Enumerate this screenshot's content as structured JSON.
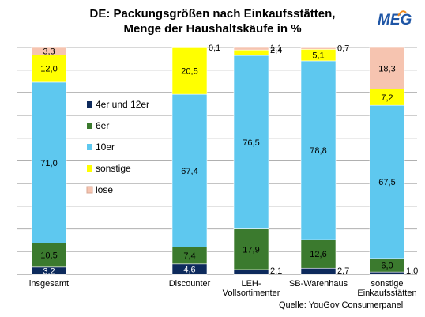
{
  "title_line1": "DE: Packungsgrößen nach Einkaufsstätten,",
  "title_line2": "Menge der Haushaltskäufe in %",
  "logo_text": "MEG",
  "source": "Quelle: YouGov Consumerpanel",
  "chart_data": {
    "type": "bar",
    "stacked": true,
    "categories": [
      "insgesamt",
      "Discounter",
      "LEH-Vollsortimenter",
      "SB-Warenhaus",
      "sonstige Einkaufsstätten"
    ],
    "category_lines": [
      [
        "insgesamt"
      ],
      [
        "Discounter"
      ],
      [
        "LEH-",
        "Vollsortimenter"
      ],
      [
        "SB-Warenhaus"
      ],
      [
        "sonstige",
        "Einkaufsstätten"
      ]
    ],
    "ylim": [
      0,
      100
    ],
    "grid": true,
    "legend_position": "left-center",
    "series": [
      {
        "name": "4er und 12er",
        "color": "#0d2a5c",
        "values": [
          3.2,
          4.6,
          2.1,
          2.7,
          1.0
        ],
        "labels": [
          "3,2",
          "4,6",
          "2,1",
          "2,7",
          "1,0"
        ]
      },
      {
        "name": "6er",
        "color": "#3b7a2e",
        "values": [
          10.5,
          7.4,
          17.9,
          12.6,
          6.0
        ],
        "labels": [
          "10,5",
          "7,4",
          "17,9",
          "12,6",
          "6,0"
        ]
      },
      {
        "name": "10er",
        "color": "#5ec8ef",
        "values": [
          71.0,
          67.4,
          76.5,
          78.8,
          67.5
        ],
        "labels": [
          "71,0",
          "67,4",
          "76,5",
          "78,8",
          "67,5"
        ]
      },
      {
        "name": "sonstige",
        "color": "#ffff00",
        "values": [
          12.0,
          20.5,
          2.4,
          5.1,
          7.2
        ],
        "labels": [
          "12,0",
          "20,5",
          "2,4",
          "5,1",
          "7,2"
        ]
      },
      {
        "name": "lose",
        "color": "#f6c4b0",
        "values": [
          3.3,
          0.1,
          1.1,
          0.7,
          18.3
        ],
        "labels": [
          "3,3",
          "0,1",
          "1,1",
          "0,7",
          "18,3"
        ]
      }
    ]
  }
}
